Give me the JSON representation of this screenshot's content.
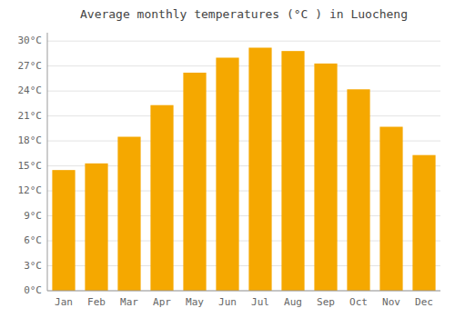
{
  "chart_data": {
    "type": "bar",
    "title": "Average monthly temperatures (°C ) in Luocheng",
    "categories": [
      "Jan",
      "Feb",
      "Mar",
      "Apr",
      "May",
      "Jun",
      "Jul",
      "Aug",
      "Sep",
      "Oct",
      "Nov",
      "Dec"
    ],
    "values": [
      14.5,
      15.3,
      18.5,
      22.3,
      26.2,
      28.0,
      29.2,
      28.8,
      27.3,
      24.2,
      19.7,
      16.3
    ],
    "color": "#F5A800",
    "ylim": [
      0,
      31
    ],
    "yticks": [
      {
        "value": 0,
        "label": "0°C"
      },
      {
        "value": 3,
        "label": "3°C"
      },
      {
        "value": 6,
        "label": "6°C"
      },
      {
        "value": 9,
        "label": "9°C"
      },
      {
        "value": 12,
        "label": "12°C"
      },
      {
        "value": 15,
        "label": "15°C"
      },
      {
        "value": 18,
        "label": "18°C"
      },
      {
        "value": 21,
        "label": "21°C"
      },
      {
        "value": 24,
        "label": "24°C"
      },
      {
        "value": 27,
        "label": "27°C"
      },
      {
        "value": 30,
        "label": "30°C"
      }
    ],
    "grid": true
  }
}
